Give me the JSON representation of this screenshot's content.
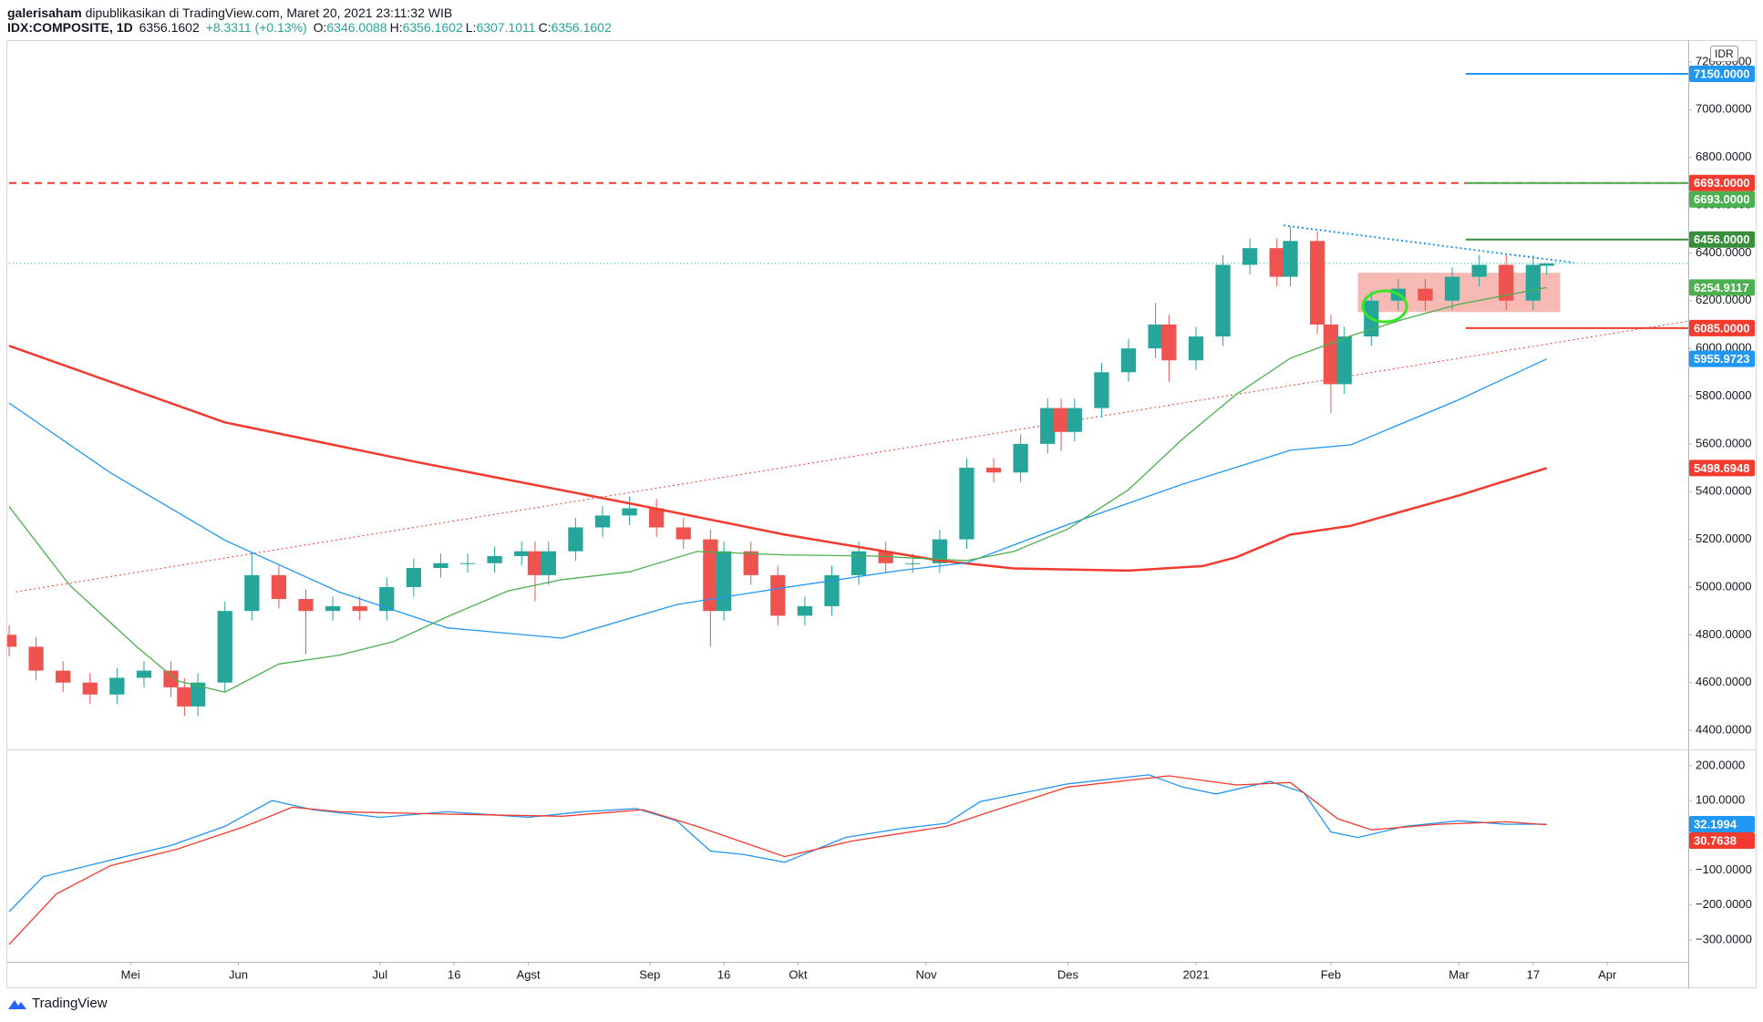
{
  "header": {
    "publisher": "galerisaham",
    "title": "dipublikasikan di TradingView.com, Maret 20, 2021 23:11:32 WIB",
    "symbol": "IDX:COMPOSITE, 1D",
    "price": "6356.1602",
    "change": "+8.3311 (+0.13%)",
    "ohlc": [
      {
        "label": "O:",
        "value": "6346.0088"
      },
      {
        "label": "H:",
        "value": "6356.1602"
      },
      {
        "label": "L:",
        "value": "6307.1011"
      },
      {
        "label": "C:",
        "value": "6356.1602"
      }
    ],
    "currency": "IDR",
    "brand": "TradingView"
  },
  "chart_data": [
    {
      "type": "candlestick",
      "xlim": [
        0,
        249
      ],
      "ylim": [
        4320,
        7280
      ],
      "up_color": "#26a69a",
      "down_color": "#ef5350",
      "yticks": [
        {
          "value": 7200,
          "label": "7200.0000"
        },
        {
          "value": 7000,
          "label": "7000.0000"
        },
        {
          "value": 6800,
          "label": "6800.0000"
        },
        {
          "value": 6600,
          "label": "6600.0000"
        },
        {
          "value": 6400,
          "label": "6400.0000"
        },
        {
          "value": 6200,
          "label": "6200.0000"
        },
        {
          "value": 6000,
          "label": "6000.0000"
        },
        {
          "value": 5800,
          "label": "5800.0000"
        },
        {
          "value": 5600,
          "label": "5600.0000"
        },
        {
          "value": 5400,
          "label": "5400.0000"
        },
        {
          "value": 5200,
          "label": "5200.0000"
        },
        {
          "value": 5000,
          "label": "5000.0000"
        },
        {
          "value": 4800,
          "label": "4800.0000"
        },
        {
          "value": 4600,
          "label": "4600.0000"
        },
        {
          "value": 4400,
          "label": "4400.0000"
        }
      ],
      "x": [
        0,
        4,
        8,
        12,
        16,
        20,
        24,
        26,
        28,
        32,
        36,
        40,
        44,
        48,
        52,
        56,
        60,
        64,
        68,
        72,
        76,
        78,
        80,
        84,
        88,
        92,
        96,
        100,
        104,
        106,
        110,
        114,
        118,
        122,
        126,
        130,
        134,
        138,
        142,
        146,
        150,
        154,
        156,
        158,
        162,
        166,
        170,
        172,
        176,
        180,
        184,
        188,
        190,
        194,
        196,
        198,
        202,
        206,
        210,
        214,
        218,
        222,
        226,
        228
      ],
      "open": [
        4800,
        4750,
        4650,
        4600,
        4550,
        4620,
        4650,
        4580,
        4500,
        4600,
        4900,
        5050,
        4950,
        4900,
        4920,
        4900,
        5000,
        5080,
        5100,
        5100,
        5130,
        5150,
        5050,
        5150,
        5250,
        5300,
        5330,
        5250,
        5200,
        4900,
        5150,
        5050,
        4880,
        4920,
        5050,
        5150,
        5100,
        5100,
        5200,
        5500,
        5480,
        5600,
        5750,
        5650,
        5750,
        5900,
        6000,
        6100,
        5950,
        6050,
        6350,
        6420,
        6300,
        6450,
        6100,
        5850,
        6050,
        6200,
        6250,
        6200,
        6300,
        6350,
        6200,
        6346.0088
      ],
      "high": [
        4840,
        4790,
        4690,
        4640,
        4660,
        4690,
        4690,
        4620,
        4640,
        4940,
        5150,
        5090,
        4990,
        4960,
        4960,
        5040,
        5120,
        5140,
        5140,
        5170,
        5190,
        5190,
        5190,
        5290,
        5340,
        5380,
        5370,
        5290,
        5240,
        5190,
        5190,
        5090,
        4960,
        5090,
        5190,
        5190,
        5140,
        5240,
        5540,
        5540,
        5640,
        5790,
        5790,
        5790,
        5940,
        6040,
        6190,
        6140,
        6090,
        6390,
        6460,
        6460,
        6510,
        6490,
        6140,
        6090,
        6240,
        6290,
        6290,
        6340,
        6390,
        6390,
        6390,
        6356.1602
      ],
      "low": [
        4710,
        4610,
        4560,
        4510,
        4510,
        4580,
        4540,
        4460,
        4460,
        4560,
        4860,
        4910,
        4720,
        4860,
        4860,
        4860,
        4960,
        5040,
        5060,
        5060,
        5090,
        4940,
        5010,
        5110,
        5210,
        5260,
        5210,
        5160,
        4750,
        4860,
        5010,
        4840,
        4840,
        4880,
        5010,
        5060,
        5060,
        5060,
        5160,
        5440,
        5440,
        5560,
        5570,
        5610,
        5710,
        5860,
        5960,
        5860,
        5910,
        6010,
        6310,
        6260,
        6260,
        6060,
        5730,
        5810,
        6010,
        6160,
        6160,
        6160,
        6260,
        6160,
        6160,
        6307.1011
      ],
      "close": [
        4750,
        4650,
        4600,
        4550,
        4620,
        4650,
        4580,
        4500,
        4600,
        4900,
        5050,
        4950,
        4900,
        4920,
        4900,
        5000,
        5080,
        5100,
        5100,
        5130,
        5150,
        5050,
        5150,
        5250,
        5300,
        5330,
        5250,
        5200,
        4900,
        5150,
        5050,
        4880,
        4920,
        5050,
        5150,
        5100,
        5100,
        5200,
        5500,
        5480,
        5600,
        5750,
        5650,
        5750,
        5900,
        6000,
        6100,
        5950,
        6050,
        6350,
        6420,
        6300,
        6450,
        6100,
        5850,
        6050,
        6200,
        6250,
        6200,
        6300,
        6350,
        6200,
        6350,
        6356.1602
      ],
      "series": [
        {
          "color": "#f23a2e",
          "width": 2.5,
          "x": [
            0,
            32,
            60,
            92,
            115,
            138,
            149,
            166,
            177,
            182,
            190,
            199,
            215,
            228
          ],
          "values": [
            6011,
            5690,
            5526,
            5351,
            5220,
            5111,
            5078,
            5069,
            5088,
            5125,
            5220,
            5257,
            5384,
            5498.6948
          ]
        },
        {
          "color": "#2196f3",
          "width": 1.3,
          "x": [
            0,
            15,
            32,
            49,
            65,
            82,
            99,
            115,
            132,
            142,
            157,
            174,
            190,
            199,
            215,
            228
          ],
          "values": [
            5771,
            5479,
            5196,
            4979,
            4829,
            4786,
            4927,
            4998,
            5069,
            5102,
            5262,
            5431,
            5573,
            5596,
            5785,
            5955.9723
          ]
        },
        {
          "color": "#4caf50",
          "width": 1.3,
          "x": [
            0,
            9,
            19,
            25,
            32,
            40,
            49,
            57,
            65,
            74,
            82,
            92,
            102,
            115,
            128,
            142,
            149,
            157,
            166,
            174,
            182,
            190,
            199,
            207,
            215,
            228
          ],
          "values": [
            5337,
            5007,
            4748,
            4607,
            4560,
            4678,
            4715,
            4772,
            4876,
            4984,
            5031,
            5064,
            5149,
            5135,
            5130,
            5111,
            5149,
            5243,
            5408,
            5620,
            5808,
            5959,
            6053,
            6124,
            6185,
            6254.9117
          ]
        }
      ],
      "last_price": {
        "value": 6356.1602,
        "color": "#26a69a"
      },
      "lines": [
        {
          "value": 6693,
          "from": 0,
          "color": "#f23a2e",
          "style": "dashed"
        },
        {
          "value": 7150,
          "from": 216,
          "color": "#2196f3",
          "style": "solid"
        },
        {
          "value": 6693,
          "from": 216,
          "color": "#4caf50",
          "style": "solid"
        },
        {
          "value": 6456,
          "from": 216,
          "color": "#388e3c",
          "style": "solid"
        },
        {
          "value": 6085,
          "from": 216,
          "color": "#f23a2e",
          "style": "solid"
        }
      ],
      "trendlines": [
        {
          "x": [
            1,
            249
          ],
          "y": [
            4980,
            6114
          ],
          "color": "#f23a2e",
          "style": "dotted"
        },
        {
          "x": [
            189,
            232
          ],
          "y": [
            6515,
            6359
          ],
          "color": "#2196f3",
          "style": "dotted"
        }
      ],
      "zone": {
        "x": [
          200,
          230
        ],
        "y": [
          6152,
          6317
        ],
        "color": "#f28b82"
      },
      "marker": {
        "x": 204,
        "y": 6176,
        "color": "#39e626"
      },
      "axis_labels": [
        {
          "value": 7150,
          "label": "7150.0000",
          "color": "#2196f3"
        },
        {
          "value": 6693,
          "label": "6693.0000",
          "color": "#f23a2e"
        },
        {
          "value": 6693,
          "label": "6693.0000",
          "color": "#4caf50"
        },
        {
          "value": 6456,
          "label": "6456.0000",
          "color": "#388e3c"
        },
        {
          "value": 6254.9117,
          "label": "6254.9117",
          "color": "#4caf50"
        },
        {
          "value": 6085,
          "label": "6085.0000",
          "color": "#f23a2e"
        },
        {
          "value": 5955.9723,
          "label": "5955.9723",
          "color": "#2196f3"
        },
        {
          "value": 5498.6948,
          "label": "5498.6948",
          "color": "#f23a2e"
        }
      ]
    },
    {
      "type": "line",
      "xlim": [
        0,
        249
      ],
      "ylim": [
        -363,
        247
      ],
      "yticks": [
        {
          "value": 200,
          "label": "200.0000"
        },
        {
          "value": 100,
          "label": "100.0000"
        },
        {
          "value": -100,
          "label": "−100.0000"
        },
        {
          "value": -200,
          "label": "−200.0000"
        },
        {
          "value": -300,
          "label": "−300.0000"
        }
      ],
      "xticks": [
        {
          "value": 18,
          "label": "Mei"
        },
        {
          "value": 34,
          "label": "Jun"
        },
        {
          "value": 55,
          "label": "Jul"
        },
        {
          "value": 66,
          "label": "16"
        },
        {
          "value": 77,
          "label": "Agst"
        },
        {
          "value": 95,
          "label": "Sep"
        },
        {
          "value": 106,
          "label": "16"
        },
        {
          "value": 117,
          "label": "Okt"
        },
        {
          "value": 136,
          "label": "Nov"
        },
        {
          "value": 157,
          "label": "Des"
        },
        {
          "value": 176,
          "label": "2021"
        },
        {
          "value": 196,
          "label": "Feb"
        },
        {
          "value": 215,
          "label": "Mar"
        },
        {
          "value": 226,
          "label": "17"
        },
        {
          "value": 237,
          "label": "Apr"
        }
      ],
      "series": [
        {
          "color": "#2196f3",
          "width": 1.3,
          "x": [
            0,
            5,
            15,
            24,
            32,
            39,
            45,
            55,
            65,
            77,
            85,
            93,
            99,
            104,
            109,
            115,
            124,
            132,
            139,
            144,
            157,
            169,
            174,
            179,
            187,
            192,
            196,
            200,
            207,
            215,
            222,
            228
          ],
          "values": [
            -219,
            -119,
            -71,
            -29,
            26,
            100,
            74,
            52,
            68,
            52,
            68,
            77,
            42,
            -45,
            -55,
            -77,
            -6,
            19,
            35,
            97,
            148,
            174,
            139,
            119,
            155,
            123,
            10,
            -6,
            26,
            42,
            32,
            32.1994
          ]
        },
        {
          "color": "#f23a2e",
          "width": 1.3,
          "x": [
            0,
            7,
            15,
            25,
            35,
            42,
            49,
            65,
            82,
            94,
            102,
            115,
            125,
            139,
            145,
            157,
            172,
            182,
            190,
            197,
            202,
            212,
            222,
            228
          ],
          "values": [
            -313,
            -168,
            -87,
            -39,
            26,
            81,
            68,
            61,
            55,
            74,
            26,
            -61,
            -16,
            26,
            65,
            139,
            171,
            145,
            152,
            48,
            16,
            32,
            39,
            30.7638
          ]
        }
      ],
      "axis_labels": [
        {
          "value": 32.1994,
          "label": "32.1994",
          "color": "#2196f3"
        },
        {
          "value": 30.7638,
          "label": "30.7638",
          "color": "#f23a2e"
        }
      ]
    }
  ]
}
